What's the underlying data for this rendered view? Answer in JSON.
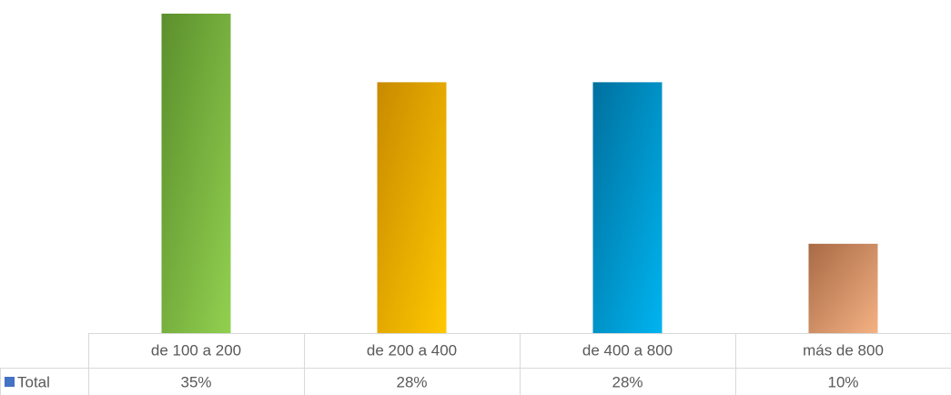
{
  "chart_data": {
    "type": "bar",
    "categories": [
      "de 100 a 200",
      "de 200 a 400",
      "de 400 a 800",
      "más de 800"
    ],
    "series": [
      {
        "name": "Total",
        "color": "#4472c4",
        "values": [
          35.4,
          27.8,
          27.8,
          9.9
        ],
        "value_labels": [
          "35%",
          "28%",
          "28%",
          "10%"
        ]
      }
    ],
    "colors": [
      "#5b8f2c",
      "#c88a00",
      "#00709e",
      "#a86a45"
    ],
    "colors_end": [
      "#92d050",
      "#ffc800",
      "#00b4f0",
      "#f4b183"
    ]
  }
}
